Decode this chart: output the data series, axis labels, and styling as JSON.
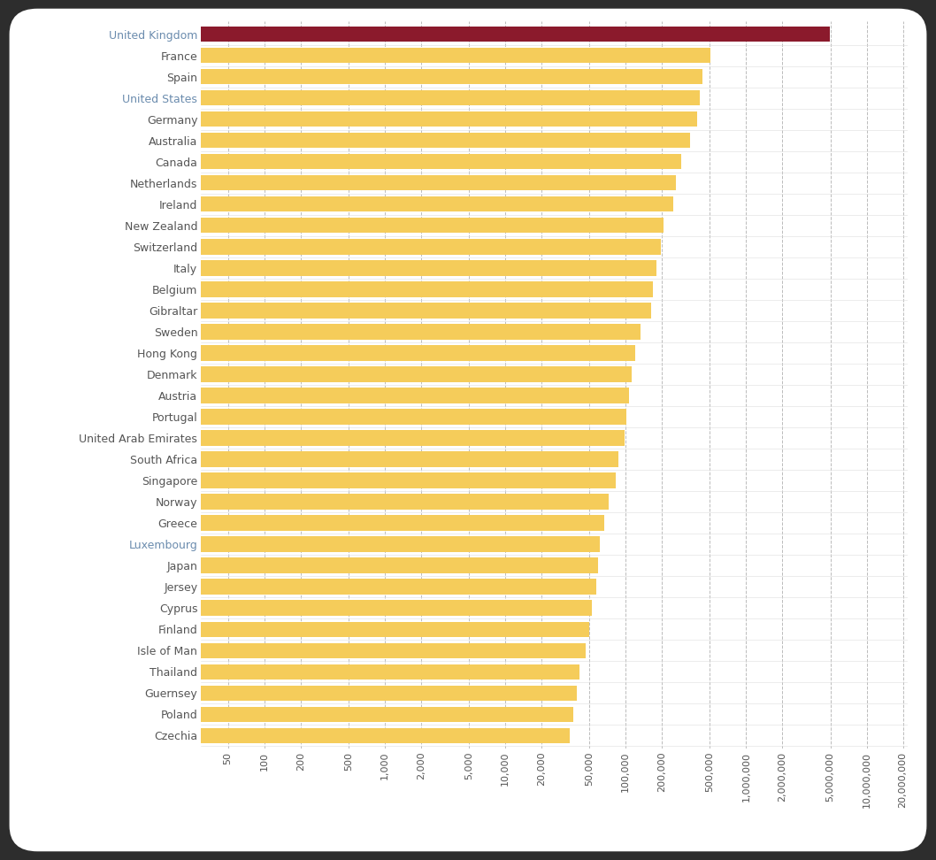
{
  "countries": [
    "United Kingdom",
    "France",
    "Spain",
    "United States",
    "Germany",
    "Australia",
    "Canada",
    "Netherlands",
    "Ireland",
    "New Zealand",
    "Switzerland",
    "Italy",
    "Belgium",
    "Gibraltar",
    "Sweden",
    "Hong Kong",
    "Denmark",
    "Austria",
    "Portugal",
    "United Arab Emirates",
    "South Africa",
    "Singapore",
    "Norway",
    "Greece",
    "Luxembourg",
    "Japan",
    "Jersey",
    "Cyprus",
    "Finland",
    "Isle of Man",
    "Thailand",
    "Guernsey",
    "Poland",
    "Czechia"
  ],
  "values": [
    4973849,
    503416,
    430290,
    413070,
    394050,
    341730,
    289070,
    259820,
    247070,
    207280,
    195870,
    181130,
    168440,
    162920,
    131690,
    120790,
    111760,
    107030,
    101690,
    97580,
    86690,
    82090,
    72530,
    66850,
    60570,
    58470,
    56790,
    52000,
    49750,
    46510,
    41000,
    39200,
    36800,
    34500
  ],
  "bar_colors": [
    "#8B1A2C",
    "#F5CC5A",
    "#F5CC5A",
    "#F5CC5A",
    "#F5CC5A",
    "#F5CC5A",
    "#F5CC5A",
    "#F5CC5A",
    "#F5CC5A",
    "#F5CC5A",
    "#F5CC5A",
    "#F5CC5A",
    "#F5CC5A",
    "#F5CC5A",
    "#F5CC5A",
    "#F5CC5A",
    "#F5CC5A",
    "#F5CC5A",
    "#F5CC5A",
    "#F5CC5A",
    "#F5CC5A",
    "#F5CC5A",
    "#F5CC5A",
    "#F5CC5A",
    "#F5CC5A",
    "#F5CC5A",
    "#F5CC5A",
    "#F5CC5A",
    "#F5CC5A",
    "#F5CC5A",
    "#F5CC5A",
    "#F5CC5A",
    "#F5CC5A",
    "#F5CC5A"
  ],
  "highlighted_labels": [
    "United Kingdom",
    "United States",
    "Luxembourg"
  ],
  "xtick_values": [
    50,
    100,
    200,
    500,
    1000,
    2000,
    5000,
    10000,
    20000,
    50000,
    100000,
    200000,
    500000,
    1000000,
    2000000,
    5000000,
    10000000,
    20000000
  ],
  "xtick_labels": [
    "50",
    "100",
    "200",
    "500",
    "1,000",
    "2,000",
    "5,000",
    "10,000",
    "20,000",
    "50,000",
    "100,000",
    "200,000",
    "500,000",
    "1,000,000",
    "2,000,000",
    "5,000,000",
    "10,000,000",
    "20,000,000"
  ],
  "background_color": "#FFFFFF",
  "outer_background": "#2D2D2D",
  "bar_height": 0.72,
  "label_fontsize": 9.0,
  "tick_fontsize": 8.0,
  "grid_color": "#BBBBBB",
  "xlim_min": 30,
  "xlim_max": 22000000,
  "normal_label_color": "#555555",
  "highlight_label_color": "#6B8CAE",
  "grid_linestyle": "--",
  "grid_linewidth": 0.7
}
